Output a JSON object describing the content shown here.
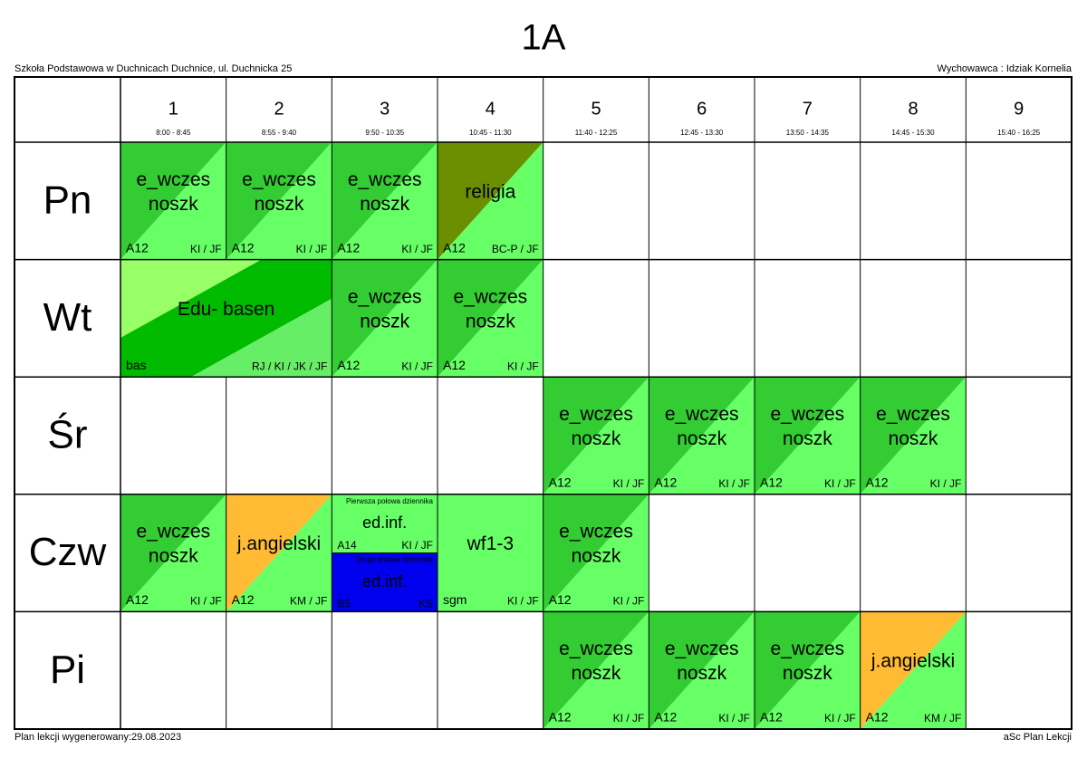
{
  "title": "1A",
  "school": "Szkoła Podstawowa w Duchnicach Duchnice, ul. Duchnicka 25",
  "teacher": "Wychowawca : Idziak Kornelia",
  "footer_left": "Plan lekcji wygenerowany:29.08.2023",
  "footer_right": "aSc Plan Lekcji",
  "periods": [
    {
      "number": "1",
      "time": "8:00 - 8:45"
    },
    {
      "number": "2",
      "time": "8:55 - 9:40"
    },
    {
      "number": "3",
      "time": "9:50 - 10:35"
    },
    {
      "number": "4",
      "time": "10:45 - 11:30"
    },
    {
      "number": "5",
      "time": "11:40 - 12:25"
    },
    {
      "number": "6",
      "time": "12:45 - 13:30"
    },
    {
      "number": "7",
      "time": "13:50 - 14:35"
    },
    {
      "number": "8",
      "time": "14:45 - 15:30"
    },
    {
      "number": "9",
      "time": "15:40 - 16:25"
    }
  ],
  "days": [
    {
      "name": "Pn",
      "slots": [
        {
          "subject": [
            "e_wczes",
            "noszk"
          ],
          "room": "A12",
          "teachers": "KI / JF",
          "colors": [
            "#33cc33",
            "#66ff66"
          ]
        },
        {
          "subject": [
            "e_wczes",
            "noszk"
          ],
          "room": "A12",
          "teachers": "KI / JF",
          "colors": [
            "#33cc33",
            "#66ff66"
          ]
        },
        {
          "subject": [
            "e_wczes",
            "noszk"
          ],
          "room": "A12",
          "teachers": "KI / JF",
          "colors": [
            "#33cc33",
            "#66ff66"
          ]
        },
        {
          "subject": [
            "religia"
          ],
          "room": "A12",
          "teachers": "BC-P / JF",
          "colors": [
            "#6b8f00",
            "#66ff66"
          ]
        },
        null,
        null,
        null,
        null,
        null
      ]
    },
    {
      "name": "Wt",
      "slots": [
        {
          "subject": [
            "Edu- basen"
          ],
          "room": "bas",
          "teachers": "RJ / KI / JK / JF",
          "colors": [
            "#99ff66",
            "#00bb00",
            "#66ee66"
          ],
          "span": 2
        },
        {
          "subject": [
            "e_wczes",
            "noszk"
          ],
          "room": "A12",
          "teachers": "KI / JF",
          "colors": [
            "#33cc33",
            "#66ff66"
          ]
        },
        {
          "subject": [
            "e_wczes",
            "noszk"
          ],
          "room": "A12",
          "teachers": "KI / JF",
          "colors": [
            "#33cc33",
            "#66ff66"
          ]
        },
        null,
        null,
        null,
        null,
        null
      ]
    },
    {
      "name": "Śr",
      "slots": [
        null,
        null,
        null,
        null,
        {
          "subject": [
            "e_wczes",
            "noszk"
          ],
          "room": "A12",
          "teachers": "KI / JF",
          "colors": [
            "#33cc33",
            "#66ff66"
          ]
        },
        {
          "subject": [
            "e_wczes",
            "noszk"
          ],
          "room": "A12",
          "teachers": "KI / JF",
          "colors": [
            "#33cc33",
            "#66ff66"
          ]
        },
        {
          "subject": [
            "e_wczes",
            "noszk"
          ],
          "room": "A12",
          "teachers": "KI / JF",
          "colors": [
            "#33cc33",
            "#66ff66"
          ]
        },
        {
          "subject": [
            "e_wczes",
            "noszk"
          ],
          "room": "A12",
          "teachers": "KI / JF",
          "colors": [
            "#33cc33",
            "#66ff66"
          ]
        },
        null
      ]
    },
    {
      "name": "Czw",
      "slots": [
        {
          "subject": [
            "e_wczes",
            "noszk"
          ],
          "room": "A12",
          "teachers": "KI / JF",
          "colors": [
            "#33cc33",
            "#66ff66"
          ]
        },
        {
          "subject": [
            "j.angielski"
          ],
          "room": "A12",
          "teachers": "KM / JF",
          "colors": [
            "#ffbb33",
            "#66ff66"
          ]
        },
        {
          "groups": [
            {
              "note": "Pierwsza połowa dziennika",
              "subject": [
                "ed.inf."
              ],
              "room": "A14",
              "teachers": "KI / JF",
              "colors": [
                "#66ff66"
              ]
            },
            {
              "note": "Druga połowa dziennika",
              "subject": [
                "ed.inf."
              ],
              "room": "B5",
              "teachers": "KS",
              "colors": [
                "#0000ee"
              ]
            }
          ]
        },
        {
          "subject": [
            "wf1-3"
          ],
          "room": "sgm",
          "teachers": "KI / JF",
          "colors": [
            "#66ff66"
          ]
        },
        {
          "subject": [
            "e_wczes",
            "noszk"
          ],
          "room": "A12",
          "teachers": "KI / JF",
          "colors": [
            "#33cc33",
            "#66ff66"
          ]
        },
        null,
        null,
        null,
        null
      ]
    },
    {
      "name": "Pi",
      "slots": [
        null,
        null,
        null,
        null,
        {
          "subject": [
            "e_wczes",
            "noszk"
          ],
          "room": "A12",
          "teachers": "KI / JF",
          "colors": [
            "#33cc33",
            "#66ff66"
          ]
        },
        {
          "subject": [
            "e_wczes",
            "noszk"
          ],
          "room": "A12",
          "teachers": "KI / JF",
          "colors": [
            "#33cc33",
            "#66ff66"
          ]
        },
        {
          "subject": [
            "e_wczes",
            "noszk"
          ],
          "room": "A12",
          "teachers": "KI / JF",
          "colors": [
            "#33cc33",
            "#66ff66"
          ]
        },
        {
          "subject": [
            "j.angielski"
          ],
          "room": "A12",
          "teachers": "KM / JF",
          "colors": [
            "#ffbb33",
            "#66ff66"
          ]
        },
        null
      ]
    }
  ]
}
